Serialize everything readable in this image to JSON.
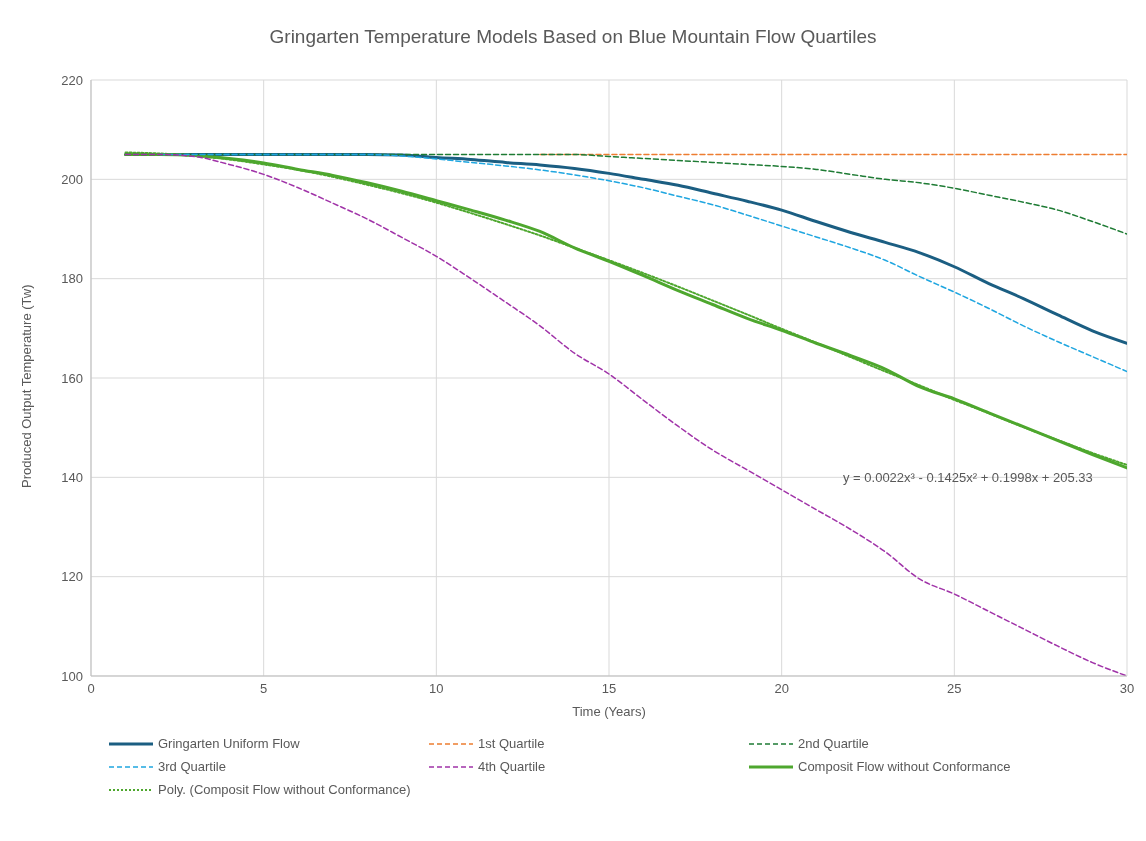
{
  "chart_data": {
    "type": "line",
    "title": "Gringarten Temperature Models Based on Blue Mountain Flow Quartiles",
    "xlabel": "Time (Years)",
    "ylabel": "Produced Output Temperature (Tw)",
    "x": [
      1,
      2,
      3,
      4,
      5,
      6,
      7,
      8,
      9,
      10,
      11,
      12,
      13,
      14,
      15,
      16,
      17,
      18,
      19,
      20,
      21,
      22,
      23,
      24,
      25,
      26,
      27,
      28,
      29,
      30
    ],
    "series": [
      {
        "name": "Gringarten Uniform Flow",
        "color": "#1b5e82",
        "line_style": "solid",
        "values": [
          205,
          205,
          205,
          205,
          205,
          205,
          205,
          205,
          204.9,
          204.4,
          204,
          203.4,
          202.9,
          202.2,
          201.2,
          200,
          198.8,
          197.2,
          195.6,
          193.8,
          191.5,
          189.3,
          187.3,
          185.2,
          182.4,
          179,
          176,
          172.7,
          169.5,
          167
        ]
      },
      {
        "name": "1st Quartile",
        "color": "#ed7d31",
        "line_style": "dashed",
        "values": [
          null,
          null,
          null,
          null,
          null,
          null,
          null,
          null,
          null,
          null,
          null,
          null,
          205,
          205,
          205,
          205,
          205,
          205,
          205,
          205,
          205,
          205,
          205,
          205,
          205,
          205,
          205,
          205,
          205,
          205
        ]
      },
      {
        "name": "2nd Quartile",
        "color": "#1e7b34",
        "line_style": "dashed",
        "values": [
          205,
          205,
          205,
          205,
          205,
          205,
          205,
          205,
          205,
          205,
          205,
          205,
          205,
          205,
          204.6,
          204.2,
          203.8,
          203.4,
          203,
          202.6,
          202,
          201,
          200,
          199.3,
          198.2,
          196.8,
          195.4,
          193.8,
          191.5,
          189
        ]
      },
      {
        "name": "3rd Quartile",
        "color": "#1fa6e0",
        "line_style": "dashed",
        "values": [
          null,
          205,
          205,
          205,
          205,
          205,
          205,
          205,
          204.7,
          204.1,
          203.4,
          202.7,
          201.9,
          200.9,
          199.7,
          198.3,
          196.6,
          194.9,
          192.8,
          190.6,
          188.4,
          186.2,
          183.7,
          180.4,
          177.3,
          174,
          170.5,
          167.3,
          164.3,
          161.3
        ]
      },
      {
        "name": "4th Quartile",
        "color": "#a033a8",
        "line_style": "dashed",
        "values": [
          205,
          205,
          204.6,
          203,
          201,
          198.3,
          195.2,
          192,
          188.3,
          184.5,
          180,
          175.3,
          170.5,
          165,
          160.8,
          155.5,
          150.3,
          145.5,
          141.5,
          137.5,
          133.5,
          129.5,
          125,
          119.5,
          116.5,
          113,
          109.5,
          106,
          102.7,
          100
        ]
      },
      {
        "name": "Composit Flow without Conformance",
        "color": "#4ea72e",
        "line_style": "solid",
        "values": [
          205,
          205,
          204.8,
          204.2,
          203.3,
          202,
          200.8,
          199.3,
          197.6,
          195.7,
          193.8,
          191.8,
          189.5,
          186.2,
          183.5,
          180.6,
          177.6,
          174.8,
          172,
          169.6,
          167,
          164.5,
          161.8,
          158.2,
          155.8,
          153,
          150.2,
          147.4,
          144.6,
          141.9
        ]
      },
      {
        "name": "Poly. (Composit Flow without Conformance)",
        "color": "#4ea72e",
        "line_style": "dotted",
        "values": [
          205.4,
          205.2,
          204.7,
          204,
          203,
          201.9,
          200.5,
          198.9,
          197.2,
          195.3,
          193.2,
          191,
          188.7,
          186.2,
          183.7,
          181.1,
          178.4,
          175.6,
          172.8,
          169.9,
          167.1,
          164.2,
          161.3,
          158.5,
          155.6,
          152.9,
          150.1,
          147.5,
          144.9,
          142.5
        ]
      }
    ],
    "xlim": [
      0,
      30
    ],
    "xticks": [
      0,
      5,
      10,
      15,
      20,
      25,
      30
    ],
    "ylim": [
      100,
      220
    ],
    "yticks": [
      100,
      120,
      140,
      160,
      180,
      200,
      220
    ],
    "grid": true,
    "legend": "bottom",
    "marker": "none",
    "annotations": [
      "y = 0.0022x³ - 0.1425x² + 0.1998x + 205.33"
    ]
  }
}
